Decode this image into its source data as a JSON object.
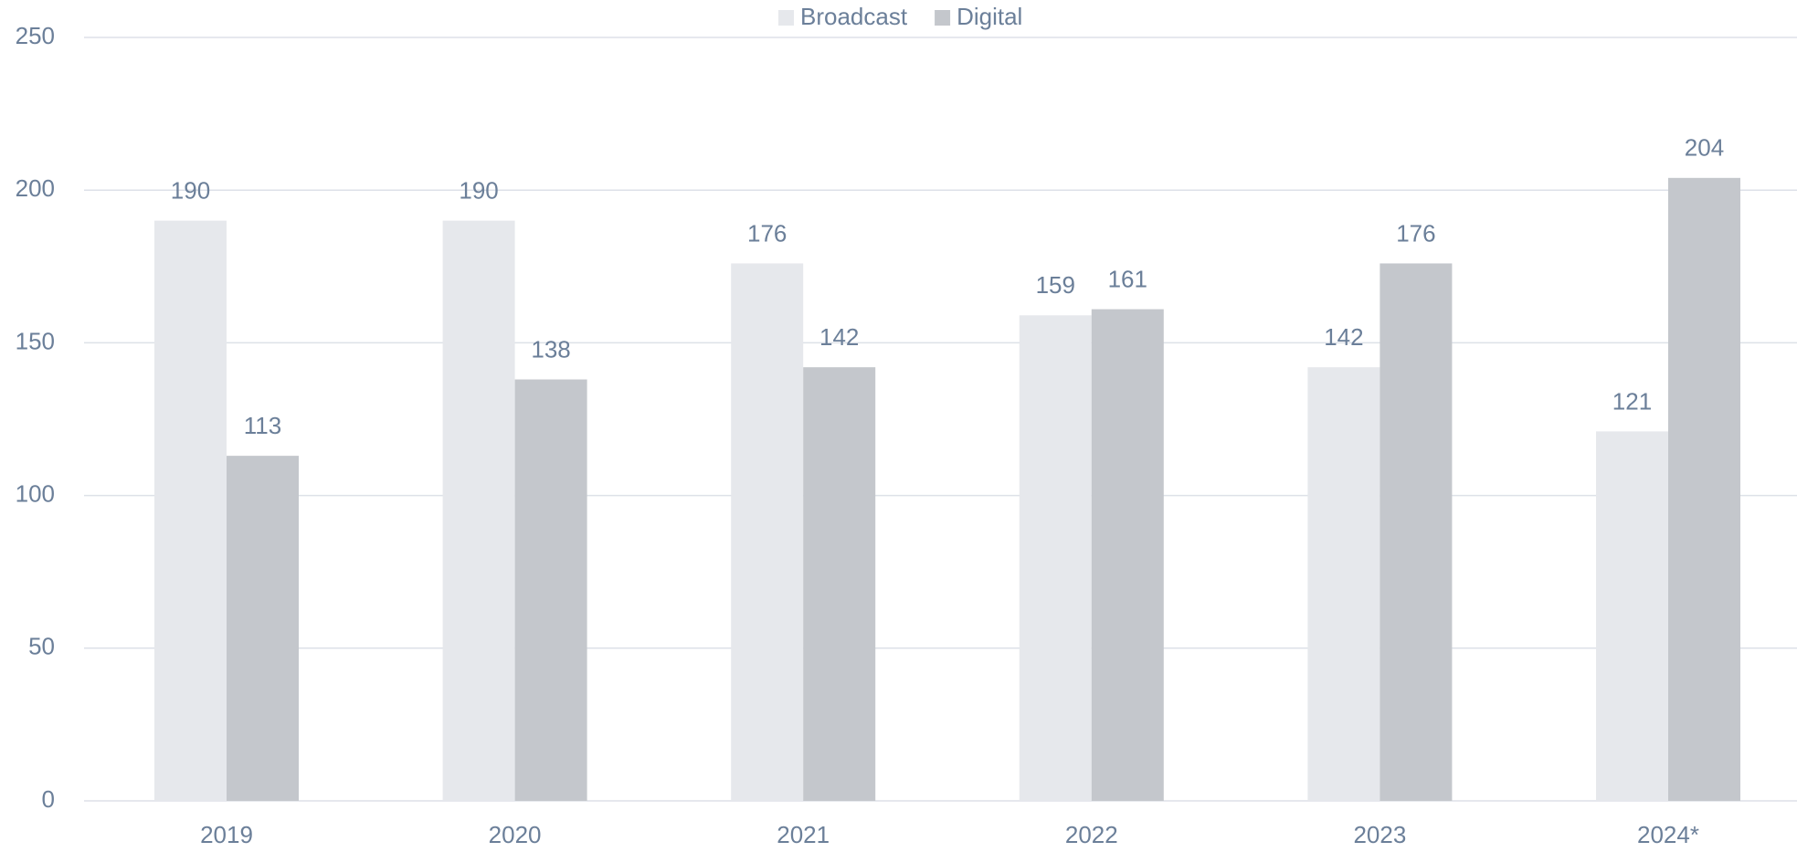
{
  "chart_data": {
    "type": "bar",
    "categories": [
      "2019",
      "2020",
      "2021",
      "2022",
      "2023",
      "2024*"
    ],
    "series": [
      {
        "name": "Broadcast",
        "color": "#e6e8ec",
        "values": [
          190,
          190,
          176,
          159,
          142,
          121
        ]
      },
      {
        "name": "Digital",
        "color": "#c4c7cc",
        "values": [
          113,
          138,
          142,
          161,
          176,
          204
        ]
      }
    ],
    "ylim": [
      0,
      250
    ],
    "yticks": [
      0,
      50,
      100,
      150,
      200,
      250
    ],
    "grid": true,
    "legend": "top"
  }
}
